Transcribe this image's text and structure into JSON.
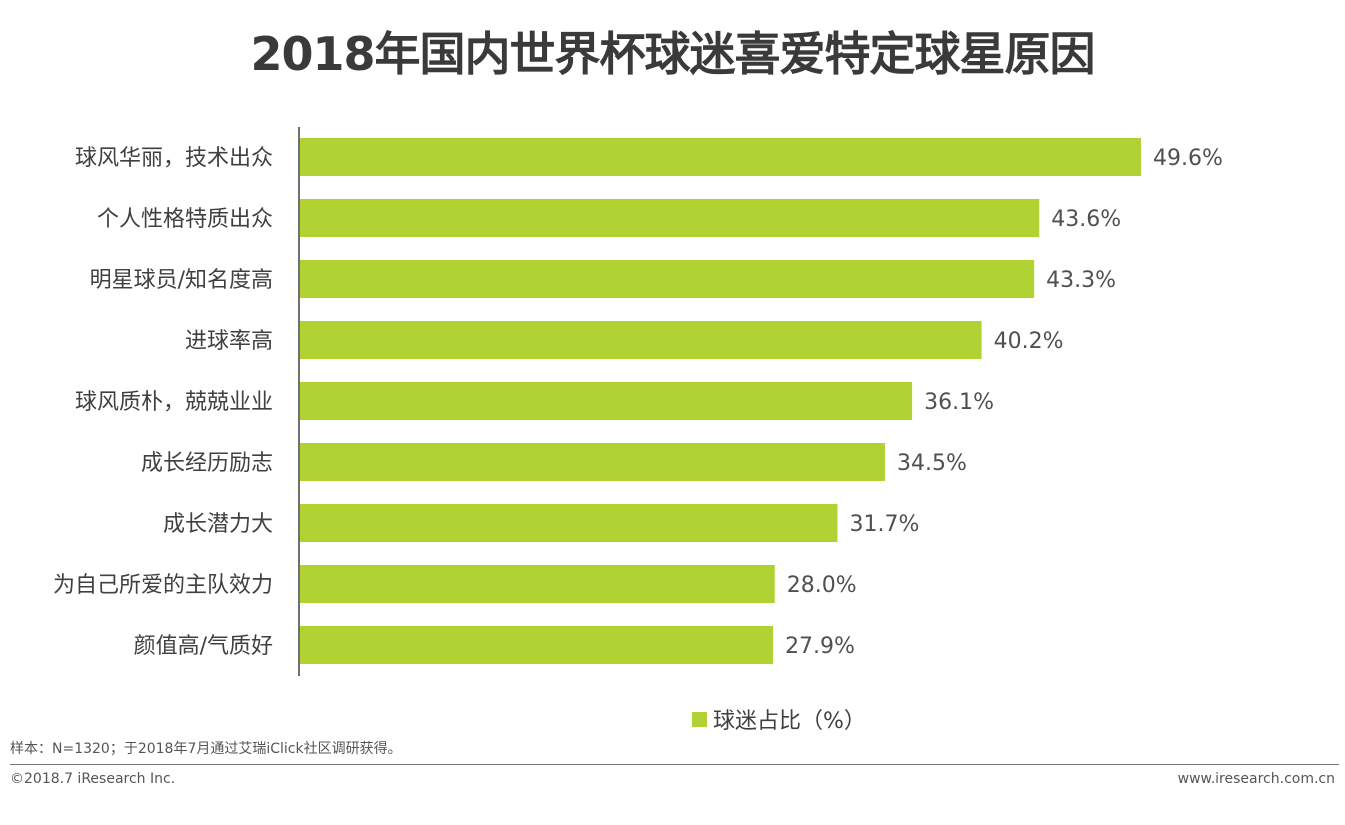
{
  "chart_data": {
    "type": "bar",
    "orientation": "horizontal",
    "title": "2018年国内世界杯球迷喜爱特定球星原因",
    "categories": [
      "球风华丽，技术出众",
      "个人性格特质出众",
      "明星球员/知名度高",
      "进球率高",
      "球风质朴，兢兢业业",
      "成长经历励志",
      "成长潜力大",
      "为自己所爱的主队效力",
      "颜值高/气质好"
    ],
    "series": [
      {
        "name": "球迷占比（%）",
        "values": [
          49.6,
          43.6,
          43.3,
          40.2,
          36.1,
          34.5,
          31.7,
          28.0,
          27.9
        ]
      }
    ],
    "value_suffix": "%",
    "xlim": [
      0,
      50
    ],
    "grid": false,
    "legend": "bottom",
    "bar_color": "#b0d232"
  },
  "footer": {
    "note": "样本：N=1320；于2018年7月通过艾瑞iClick社区调研获得。",
    "copyright": "©2018.7 iResearch Inc.",
    "website": "www.iresearch.com.cn"
  }
}
